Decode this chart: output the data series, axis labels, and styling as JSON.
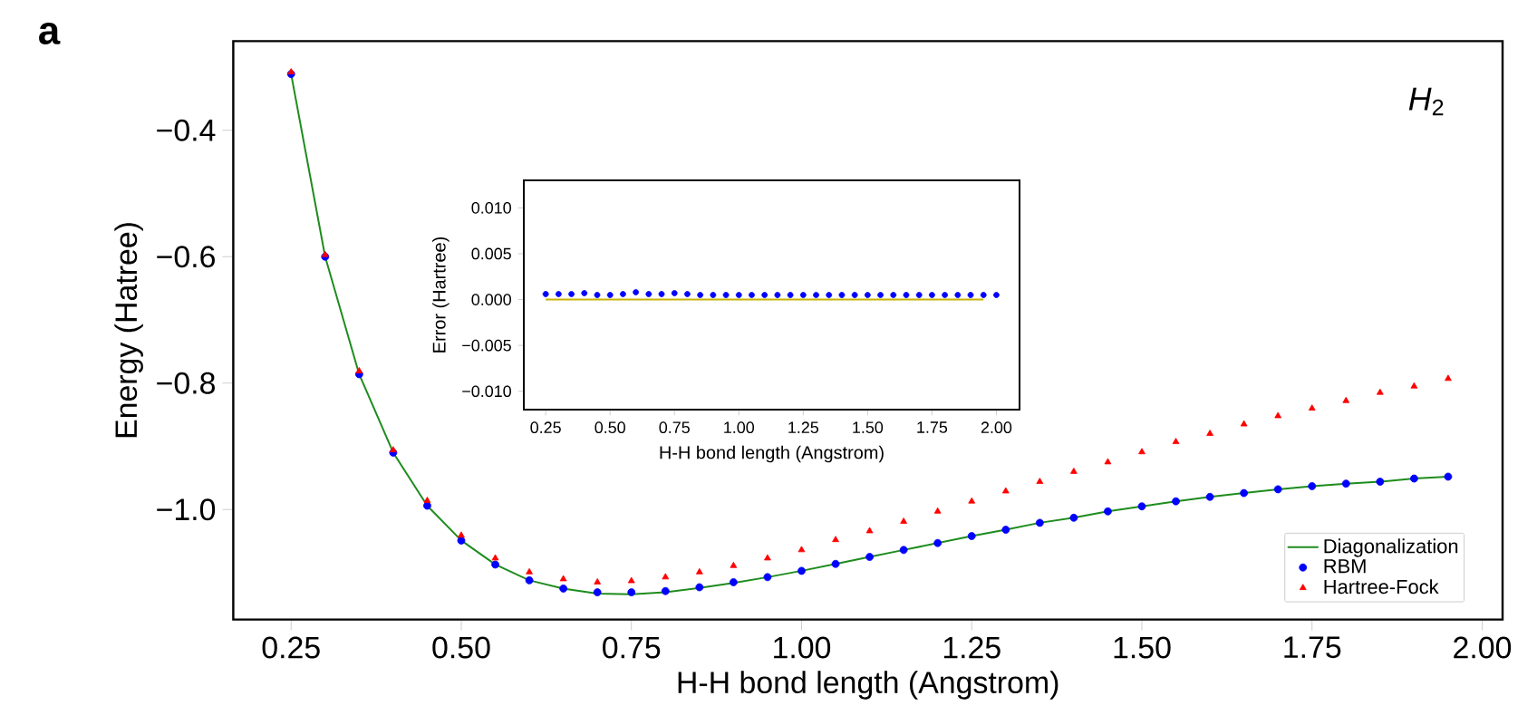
{
  "chart_data": [
    {
      "type": "line",
      "xlabel": "H-H bond length (Angstrom)",
      "ylabel": "Energy (Hatree)",
      "annotations": [
        "a",
        "*H*$_{2}$"
      ],
      "legend": "bottom right",
      "xlim": [
        0.165,
        2.03
      ],
      "ylim": [
        -1.174,
        -0.259
      ],
      "xticks": [
        {
          "value": 0.25,
          "label": "0.25"
        },
        {
          "value": 0.5,
          "label": "0.50"
        },
        {
          "value": 0.75,
          "label": "0.75"
        },
        {
          "value": 1.0,
          "label": "1.00"
        },
        {
          "value": 1.25,
          "label": "1.25"
        },
        {
          "value": 1.5,
          "label": "1.50"
        },
        {
          "value": 1.75,
          "label": "1.75"
        },
        {
          "value": 2.0,
          "label": "2.00"
        }
      ],
      "yticks": [
        {
          "value": -0.4,
          "label": "−0.4"
        },
        {
          "value": -0.6,
          "label": "−0.6"
        },
        {
          "value": -0.8,
          "label": "−0.8"
        },
        {
          "value": -1.0,
          "label": "−1.0"
        }
      ],
      "x": [
        0.25,
        0.3,
        0.35,
        0.4,
        0.45,
        0.5,
        0.55,
        0.6,
        0.65,
        0.7,
        0.75,
        0.8,
        0.85,
        0.9,
        0.95,
        1.0,
        1.05,
        1.1,
        1.15,
        1.2,
        1.25,
        1.3,
        1.35,
        1.4,
        1.45,
        1.5,
        1.55,
        1.6,
        1.65,
        1.7,
        1.75,
        1.8,
        1.85,
        1.9,
        1.95
      ],
      "series": [
        {
          "name": "Diagonalization",
          "color": "#1e8c1e",
          "values": [
            -0.311,
            -0.6,
            -0.786,
            -0.91,
            -0.994,
            -1.049,
            -1.087,
            -1.112,
            -1.125,
            -1.133,
            -1.134,
            -1.131,
            -1.124,
            -1.116,
            -1.107,
            -1.097,
            -1.086,
            -1.075,
            -1.064,
            -1.053,
            -1.042,
            -1.032,
            -1.021,
            -1.013,
            -1.003,
            -0.995,
            -0.987,
            -0.98,
            -0.974,
            -0.968,
            -0.963,
            -0.959,
            -0.956,
            -0.951,
            -0.948
          ]
        },
        {
          "name": "RBM",
          "type": "scatter",
          "marker": "circle",
          "color": "#0000ff",
          "values": [
            -0.311,
            -0.6,
            -0.786,
            -0.91,
            -0.994,
            -1.049,
            -1.087,
            -1.112,
            -1.125,
            -1.131,
            -1.131,
            -1.129,
            -1.123,
            -1.115,
            -1.107,
            -1.097,
            -1.086,
            -1.075,
            -1.064,
            -1.053,
            -1.042,
            -1.032,
            -1.021,
            -1.013,
            -1.003,
            -0.995,
            -0.987,
            -0.98,
            -0.974,
            -0.968,
            -0.963,
            -0.959,
            -0.956,
            -0.951,
            -0.948
          ]
        },
        {
          "name": "Hartree-Fock",
          "type": "scatter",
          "marker": "triangle",
          "color": "#ff0000",
          "values": [
            -0.308,
            -0.597,
            -0.781,
            -0.906,
            -0.986,
            -1.041,
            -1.077,
            -1.099,
            -1.11,
            -1.115,
            -1.113,
            -1.107,
            -1.099,
            -1.089,
            -1.077,
            -1.064,
            -1.048,
            -1.034,
            -1.019,
            -1.003,
            -0.987,
            -0.971,
            -0.956,
            -0.94,
            -0.925,
            -0.909,
            -0.893,
            -0.88,
            -0.865,
            -0.852,
            -0.84,
            -0.828,
            -0.815,
            -0.805,
            -0.793
          ]
        }
      ]
    },
    {
      "type": "scatter",
      "xlabel": "H-H bond length (Angstrom)",
      "ylabel": "Error (Hartree)",
      "xlim": [
        0.165,
        2.09
      ],
      "ylim": [
        -0.012,
        0.013
      ],
      "xticks": [
        {
          "value": 0.25,
          "label": "0.25"
        },
        {
          "value": 0.5,
          "label": "0.50"
        },
        {
          "value": 0.75,
          "label": "0.75"
        },
        {
          "value": 1.0,
          "label": "1.00"
        },
        {
          "value": 1.25,
          "label": "1.25"
        },
        {
          "value": 1.5,
          "label": "1.50"
        },
        {
          "value": 1.75,
          "label": "1.75"
        },
        {
          "value": 2.0,
          "label": "2.00"
        }
      ],
      "yticks": [
        {
          "value": 0.01,
          "label": "0.010"
        },
        {
          "value": 0.005,
          "label": "0.005"
        },
        {
          "value": 0.0,
          "label": "0.000"
        },
        {
          "value": -0.005,
          "label": "−0.005"
        },
        {
          "value": -0.01,
          "label": "−0.010"
        }
      ],
      "series": [
        {
          "type": "line",
          "color": "#c8b400",
          "x": [
            0.25,
            1.95
          ],
          "values": [
            0.0,
            0.0
          ]
        },
        {
          "marker": "circle",
          "color": "#0000ff",
          "x": [
            0.25,
            0.3,
            0.35,
            0.4,
            0.45,
            0.5,
            0.55,
            0.6,
            0.65,
            0.7,
            0.75,
            0.8,
            0.85,
            0.9,
            0.95,
            1.0,
            1.05,
            1.1,
            1.15,
            1.2,
            1.25,
            1.3,
            1.35,
            1.4,
            1.45,
            1.5,
            1.55,
            1.6,
            1.65,
            1.7,
            1.75,
            1.8,
            1.85,
            1.9,
            1.95,
            2.0
          ],
          "values": [
            0.0006,
            0.0006,
            0.0006,
            0.0007,
            0.0005,
            0.0005,
            0.0006,
            0.0008,
            0.0006,
            0.0006,
            0.0007,
            0.0006,
            0.0005,
            0.0005,
            0.0005,
            0.0005,
            0.0005,
            0.0005,
            0.0005,
            0.0005,
            0.0005,
            0.0005,
            0.0005,
            0.0005,
            0.0005,
            0.0005,
            0.0005,
            0.0005,
            0.0005,
            0.0005,
            0.0005,
            0.0005,
            0.0005,
            0.0005,
            0.0005,
            0.0005
          ]
        }
      ]
    }
  ]
}
